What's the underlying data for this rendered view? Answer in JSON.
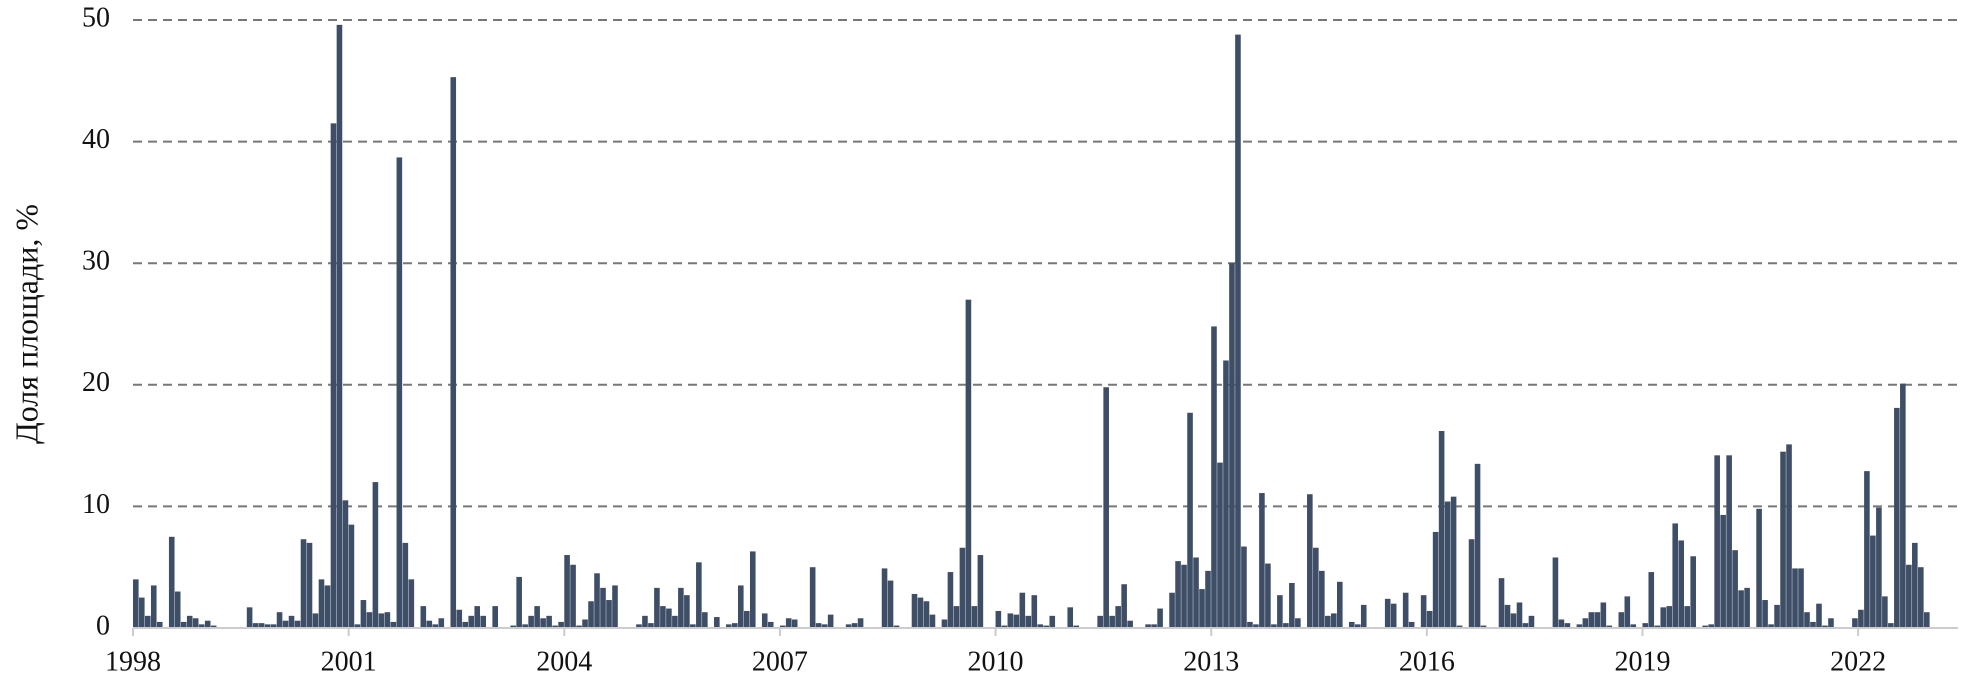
{
  "chart_data": {
    "type": "bar",
    "y_label": "Доля площади, %",
    "color": "#3e4e66",
    "grid": true,
    "ylim": [
      0,
      50
    ],
    "yticks": [
      0,
      10,
      20,
      30,
      40,
      50
    ],
    "categories": [
      "1998",
      null,
      null,
      null,
      null,
      null,
      null,
      null,
      null,
      null,
      null,
      null,
      null,
      null,
      null,
      null,
      null,
      null,
      null,
      null,
      null,
      null,
      null,
      null,
      null,
      null,
      null,
      null,
      null,
      null,
      null,
      null,
      null,
      null,
      null,
      null,
      "2001",
      null,
      null,
      null,
      null,
      null,
      null,
      null,
      null,
      null,
      null,
      null,
      null,
      null,
      null,
      null,
      null,
      null,
      null,
      null,
      null,
      null,
      null,
      null,
      null,
      null,
      null,
      null,
      null,
      null,
      null,
      null,
      null,
      null,
      null,
      null,
      "2004",
      null,
      null,
      null,
      null,
      null,
      null,
      null,
      null,
      null,
      null,
      null,
      null,
      null,
      null,
      null,
      null,
      null,
      null,
      null,
      null,
      null,
      null,
      null,
      null,
      null,
      null,
      null,
      null,
      null,
      null,
      null,
      null,
      null,
      null,
      null,
      "2007",
      null,
      null,
      null,
      null,
      null,
      null,
      null,
      null,
      null,
      null,
      null,
      null,
      null,
      null,
      null,
      null,
      null,
      null,
      null,
      null,
      null,
      null,
      null,
      null,
      null,
      null,
      null,
      null,
      null,
      null,
      null,
      null,
      null,
      null,
      null,
      "2010",
      null,
      null,
      null,
      null,
      null,
      null,
      null,
      null,
      null,
      null,
      null,
      null,
      null,
      null,
      null,
      null,
      null,
      null,
      null,
      null,
      null,
      null,
      null,
      null,
      null,
      null,
      null,
      null,
      null,
      null,
      null,
      null,
      null,
      null,
      null,
      "2013",
      null,
      null,
      null,
      null,
      null,
      null,
      null,
      null,
      null,
      null,
      null,
      null,
      null,
      null,
      null,
      null,
      null,
      null,
      null,
      null,
      null,
      null,
      null,
      null,
      null,
      null,
      null,
      null,
      null,
      null,
      null,
      null,
      null,
      null,
      null,
      "2016",
      null,
      null,
      null,
      null,
      null,
      null,
      null,
      null,
      null,
      null,
      null,
      null,
      null,
      null,
      null,
      null,
      null,
      null,
      null,
      null,
      null,
      null,
      null,
      null,
      null,
      null,
      null,
      null,
      null,
      null,
      null,
      null,
      null,
      null,
      null,
      "2019",
      null,
      null,
      null,
      null,
      null,
      null,
      null,
      null,
      null,
      null,
      null,
      null,
      null,
      null,
      null,
      null,
      null,
      null,
      null,
      null,
      null,
      null,
      null,
      null,
      null,
      null,
      null,
      null,
      null,
      null,
      null,
      null,
      null,
      null,
      null,
      "2022",
      null,
      null,
      null,
      null,
      null,
      null,
      null,
      null,
      null,
      null,
      null
    ],
    "values": [
      4,
      2.5,
      1,
      3.5,
      0.5,
      0,
      7.5,
      3,
      0.5,
      1,
      0.8,
      0.3,
      0.6,
      0.2,
      0,
      0,
      0,
      0,
      0,
      1.7,
      0.4,
      0.4,
      0.3,
      0.3,
      1.3,
      0.6,
      1,
      0.6,
      7.3,
      7,
      1.2,
      4,
      3.5,
      41.5,
      49.6,
      10.5,
      8.5,
      0.3,
      2.3,
      1.3,
      12,
      1.2,
      1.3,
      0.5,
      38.7,
      7,
      4,
      0,
      1.8,
      0.6,
      0.3,
      0.8,
      0,
      45.3,
      1.5,
      0.5,
      1,
      1.8,
      1,
      0,
      1.8,
      0,
      0,
      0.2,
      4.2,
      0.3,
      1,
      1.8,
      0.8,
      1,
      0.2,
      0.5,
      6,
      5.2,
      0.2,
      0.7,
      2.2,
      4.5,
      3.3,
      2.3,
      3.5,
      0,
      0,
      0,
      0.3,
      1,
      0.4,
      3.3,
      1.8,
      1.6,
      1,
      3.3,
      2.7,
      0.3,
      5.4,
      1.3,
      0,
      0.9,
      0,
      0.3,
      0.4,
      3.5,
      1.4,
      6.3,
      0,
      1.2,
      0.5,
      0,
      0.2,
      0.8,
      0.7,
      0,
      0,
      5,
      0.4,
      0.3,
      1.1,
      0,
      0,
      0.3,
      0.4,
      0.8,
      0,
      0,
      0,
      4.9,
      3.9,
      0.2,
      0,
      0,
      2.8,
      2.5,
      2.2,
      1.1,
      0,
      0.7,
      4.6,
      1.8,
      6.6,
      27,
      1.8,
      6,
      0,
      0,
      1.4,
      0.2,
      1.2,
      1.1,
      2.9,
      1,
      2.7,
      0.3,
      0.2,
      1,
      0,
      0,
      1.7,
      0.2,
      0,
      0,
      0,
      1,
      19.8,
      1,
      1.8,
      3.6,
      0.6,
      0,
      0,
      0.3,
      0.3,
      1.6,
      0,
      2.9,
      5.5,
      5.2,
      17.7,
      5.8,
      3.2,
      4.7,
      24.8,
      13.6,
      22,
      30,
      48.8,
      6.7,
      0.5,
      0.3,
      11.1,
      5.3,
      0.3,
      2.7,
      0.4,
      3.7,
      0.8,
      0,
      11,
      6.6,
      4.7,
      1,
      1.2,
      3.8,
      0,
      0.5,
      0.3,
      1.9,
      0,
      0,
      0,
      2.4,
      2,
      0,
      2.9,
      0.5,
      0,
      2.7,
      1.4,
      7.9,
      16.2,
      10.4,
      10.8,
      0.2,
      0,
      7.3,
      13.5,
      0.2,
      0,
      0,
      4.1,
      1.9,
      1.2,
      2.1,
      0.4,
      1,
      0,
      0,
      0,
      5.8,
      0.7,
      0.4,
      0,
      0.3,
      0.8,
      1.3,
      1.3,
      2.1,
      0.2,
      0,
      1.3,
      2.6,
      0.3,
      0,
      0.4,
      4.6,
      0.2,
      1.7,
      1.8,
      8.6,
      7.2,
      1.8,
      5.9,
      0,
      0.2,
      0.3,
      14.2,
      9.3,
      14.2,
      6.4,
      3.1,
      3.3,
      0,
      9.8,
      2.3,
      0.3,
      1.9,
      14.5,
      15.1,
      4.9,
      4.9,
      1.3,
      0.5,
      2,
      0.2,
      0.8,
      0,
      0,
      0,
      0.8,
      1.5,
      12.9,
      7.6,
      9.9,
      2.6,
      0.4,
      18.1,
      20.1,
      5.2,
      7,
      5,
      1.3
    ]
  }
}
